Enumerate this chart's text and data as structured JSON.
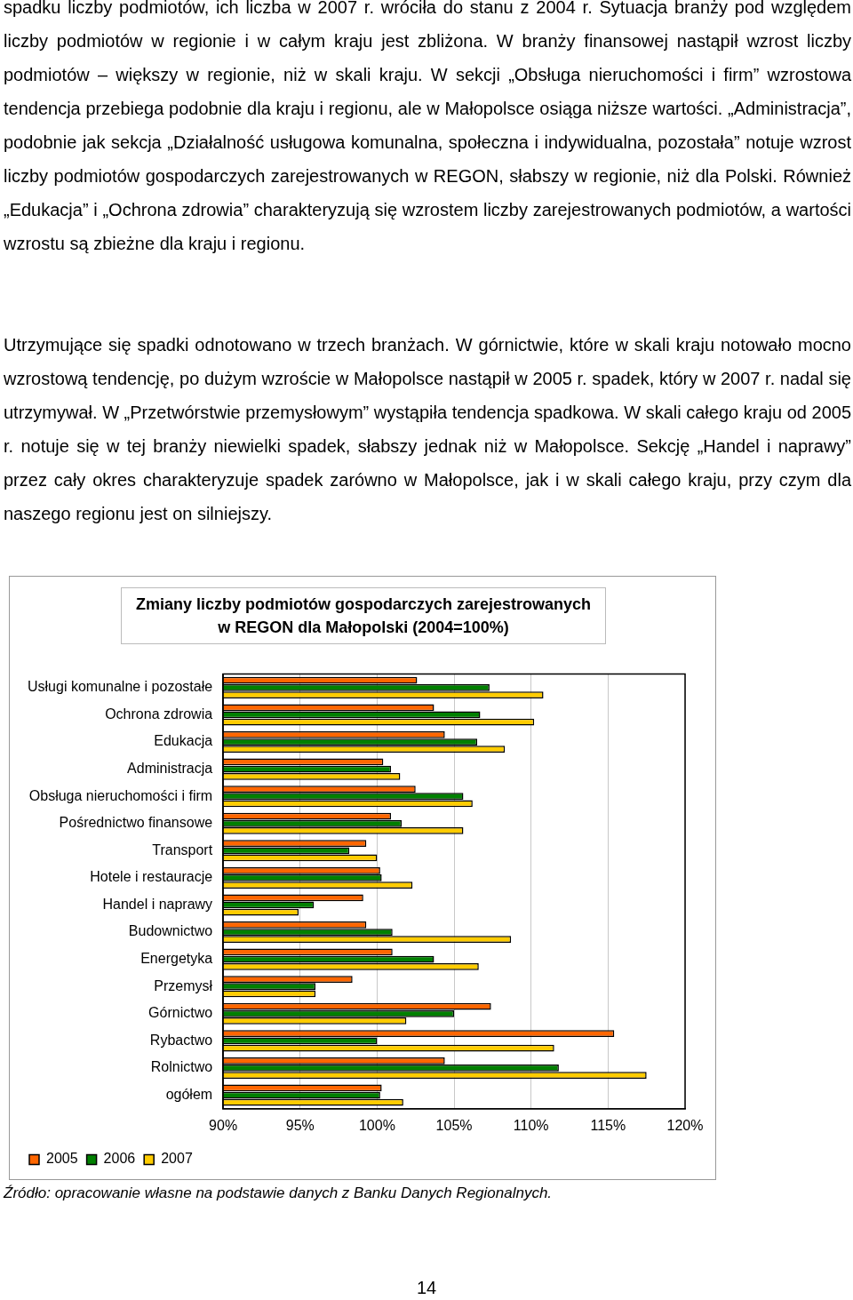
{
  "chart_data": {
    "type": "bar",
    "orientation": "horizontal",
    "title": "Zmiany liczby podmiotów gospodarczych zarejestrowanych\nw REGON dla Małopolski (2004=100%)",
    "categories": [
      "Usługi komunalne i pozostałe",
      "Ochrona zdrowia",
      "Edukacja",
      "Administracja",
      "Obsługa nieruchomości i firm",
      "Pośrednictwo finansowe",
      "Transport",
      "Hotele i restauracje",
      "Handel i naprawy",
      "Budownictwo",
      "Energetyka",
      "Przemysł",
      "Górnictwo",
      "Rybactwo",
      "Rolnictwo",
      "ogółem"
    ],
    "series": [
      {
        "name": "2005",
        "color": "#ff6600",
        "values": [
          102.6,
          103.7,
          104.4,
          100.4,
          102.5,
          100.9,
          99.3,
          100.2,
          99.1,
          99.3,
          101.0,
          98.4,
          107.4,
          115.4,
          104.4,
          100.3
        ]
      },
      {
        "name": "2006",
        "color": "#008000",
        "values": [
          107.3,
          106.7,
          106.5,
          100.9,
          105.6,
          101.6,
          98.2,
          100.3,
          95.9,
          101.0,
          103.7,
          96.0,
          105.0,
          100.0,
          111.8,
          100.2
        ]
      },
      {
        "name": "2007",
        "color": "#ffcc00",
        "values": [
          110.8,
          110.2,
          108.3,
          101.5,
          106.2,
          105.6,
          100.0,
          102.3,
          94.9,
          108.7,
          106.6,
          96.0,
          101.9,
          111.5,
          117.5,
          101.7
        ]
      }
    ],
    "xlim": [
      90,
      120
    ],
    "xticks": [
      {
        "value": 90,
        "label": "90%"
      },
      {
        "value": 95,
        "label": "95%"
      },
      {
        "value": 100,
        "label": "100%"
      },
      {
        "value": 105,
        "label": "105%"
      },
      {
        "value": 110,
        "label": "110%"
      },
      {
        "value": 115,
        "label": "115%"
      },
      {
        "value": 120,
        "label": "120%"
      }
    ],
    "grid": "x",
    "legend": "bottom left",
    "annotations": [
      "spadku liczby podmiotów, ich liczba w 2007 r. wróciła do stanu z 2004 r. Sytuacja branży pod względem liczby podmiotów w regionie i w całym kraju jest zbliżona. W branży finansowej nastąpił wzrost liczby podmiotów – większy w regionie, niż w skali kraju. W sekcji „Obsługa nieruchomości i firm” wzrostowa tendencja przebiega podobnie dla kraju i regionu, ale w Małopolsce osiąga niższe wartości. „Administracja”, podobnie jak sekcja „Działalność usługowa komunalna, społeczna i indywidualna, pozostała” notuje wzrost liczby podmiotów gospodarczych zarejestrowanych w REGON, słabszy w regionie, niż dla Polski. Również „Edukacja” i „Ochrona zdrowia” charakteryzują się wzrostem liczby zarejestrowanych podmiotów, a wartości wzrostu są zbieżne dla kraju i regionu.",
      "Utrzymujące się spadki odnotowano w trzech branżach. W górnictwie, które w skali kraju notowało mocno wzrostową tendencję, po dużym wzroście w Małopolsce nastąpił w 2005 r. spadek, który w 2007 r. nadal się utrzymywał. W „Przetwórstwie przemysłowym” wystąpiła tendencja spadkowa. W skali całego kraju od 2005 r. notuje się w tej branży niewielki spadek, słabszy jednak niż w Małopolsce. Sekcję „Handel i naprawy” przez cały okres charakteryzuje spadek zarówno w Małopolsce, jak i w skali całego kraju, przy czym dla naszego regionu jest on silniejszy.",
      "Źródło: opracowanie własne na podstawie danych z Banku Danych Regionalnych.",
      "14"
    ]
  }
}
